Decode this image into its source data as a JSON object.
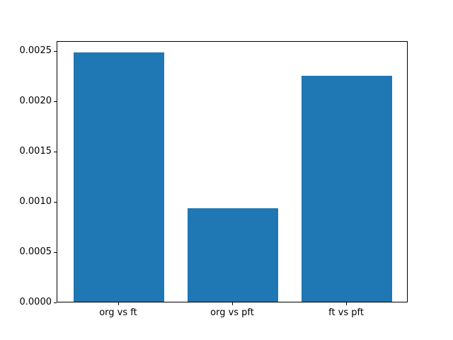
{
  "figure": {
    "background": "#ffffff"
  },
  "chart_data": {
    "type": "bar",
    "title": "",
    "xlabel": "",
    "ylabel": "",
    "categories": [
      "org vs ft",
      "org vs pft",
      "ft vs pft"
    ],
    "x": [
      0,
      1,
      2
    ],
    "values": [
      0.00248,
      0.00093,
      0.00225
    ],
    "bar_color": "#1f77b4",
    "bar_width": 0.8,
    "xlim": [
      -0.54,
      2.54
    ],
    "ylim": [
      0,
      0.0026
    ],
    "yticks": [
      0,
      0.0005,
      0.001,
      0.0015,
      0.002,
      0.0025
    ],
    "ytick_labels": [
      "0.0000",
      "0.0005",
      "0.0010",
      "0.0015",
      "0.0020",
      "0.0025"
    ],
    "grid": false,
    "legend": null,
    "spine_color": "#000000",
    "tick_color": "#000000",
    "label_color": "#000000"
  }
}
